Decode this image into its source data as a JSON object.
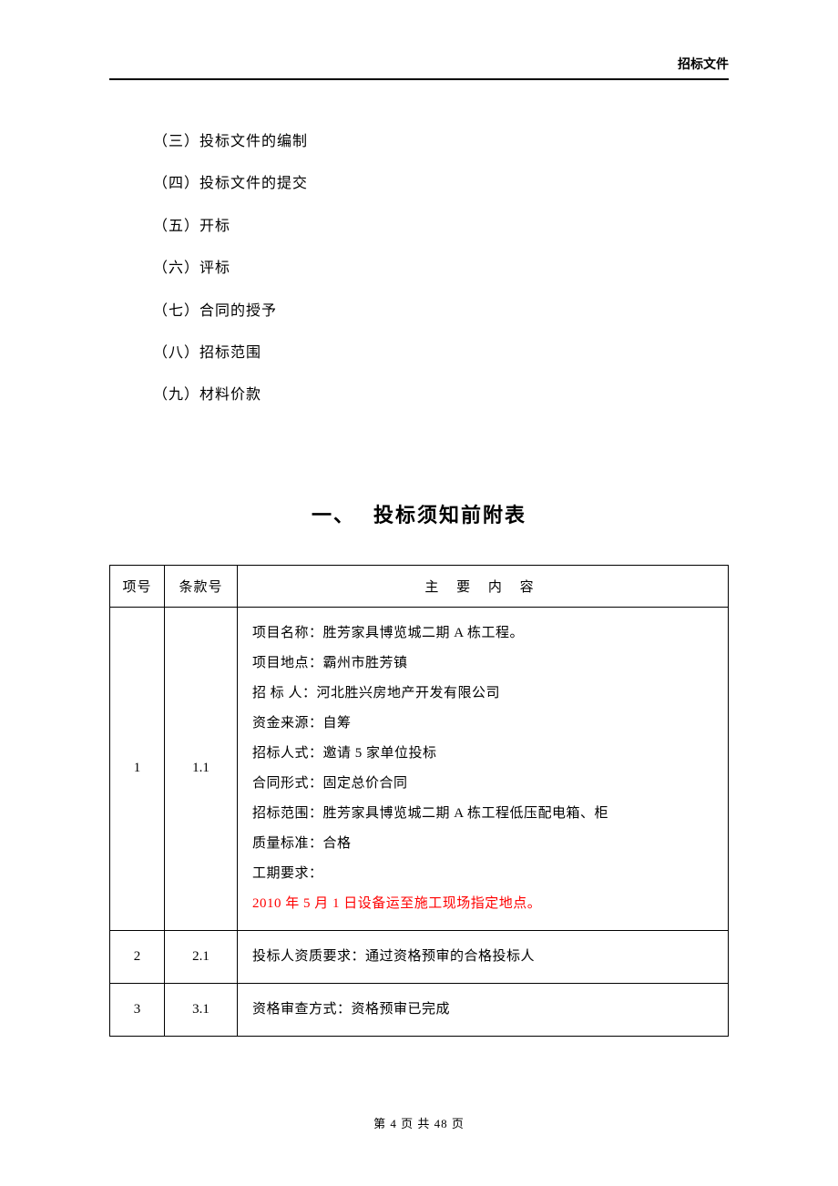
{
  "header": {
    "title": "招标文件"
  },
  "toc": {
    "items": [
      "（三）投标文件的编制",
      "（四）投标文件的提交",
      "（五）开标",
      "（六）评标",
      "（七）合同的授予",
      "（八）招标范围",
      "（九）材料价款"
    ]
  },
  "section": {
    "number": "一、",
    "title": "投标须知前附表"
  },
  "table": {
    "headers": {
      "col1": "项号",
      "col2": "条款号",
      "col3": "主  要  内  容"
    },
    "rows": [
      {
        "num": "1",
        "clause": "1.1",
        "content": {
          "lines": [
            "项目名称：胜芳家具博览城二期 A 栋工程。",
            "项目地点：霸州市胜芳镇",
            "招 标 人：河北胜兴房地产开发有限公司",
            "资金来源：自筹",
            "招标人式：邀请 5 家单位投标",
            "合同形式：固定总价合同",
            "招标范围：胜芳家具博览城二期 A 栋工程低压配电箱、柜",
            "质量标准：合格",
            "工期要求："
          ],
          "red_line": "2010 年 5 月 1 日设备运至施工现场指定地点。"
        }
      },
      {
        "num": "2",
        "clause": "2.1",
        "content_single": "投标人资质要求：通过资格预审的合格投标人"
      },
      {
        "num": "3",
        "clause": "3.1",
        "content_single": "资格审查方式：资格预审已完成"
      }
    ]
  },
  "footer": {
    "text": "第 4 页 共 48 页"
  },
  "colors": {
    "text": "#000000",
    "red": "#ff0000",
    "background": "#ffffff",
    "border": "#000000"
  },
  "fonts": {
    "body_size": 15,
    "toc_size": 16,
    "title_size": 22,
    "header_size": 14,
    "footer_size": 13
  }
}
